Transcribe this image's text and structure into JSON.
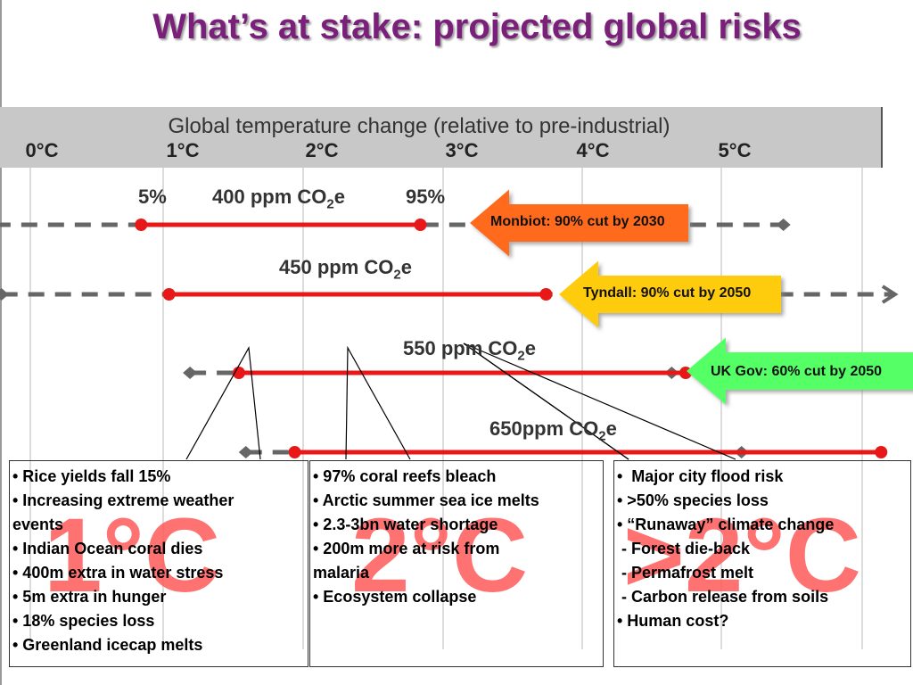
{
  "title": "What’s at stake: projected global risks",
  "axis": {
    "title": "Global temperature change (relative to pre-industrial)",
    "ticks": [
      "0°C",
      "1°C",
      "2°C",
      "3°C",
      "4°C",
      "5°C"
    ]
  },
  "lines": [
    {
      "label": "400 ppm CO",
      "sub": "2",
      "suffix": "e",
      "low_pct": "5%",
      "high_pct": "95%",
      "range": [
        -0.25,
        5.4
      ],
      "likely": [
        0.8,
        2.8
      ]
    },
    {
      "label": "450 ppm CO",
      "sub": "2",
      "suffix": "e",
      "range": [
        -0.2,
        6.2
      ],
      "likely": [
        1.0,
        3.7
      ]
    },
    {
      "label": "550 ppm CO",
      "sub": "2",
      "suffix": "e",
      "range": [
        1.15,
        4.6
      ],
      "likely": [
        1.5,
        4.7
      ]
    },
    {
      "label": "650ppm CO",
      "sub": "2",
      "suffix": "e",
      "range": [
        1.55,
        5.1
      ],
      "likely": [
        1.9,
        6.1
      ]
    }
  ],
  "policy_arrows": [
    {
      "label": "Monbiot: 90% cut by 2030",
      "color": "#ff6a1a"
    },
    {
      "label": "Tyndall: 90% cut by 2050",
      "color": "#ffcc11"
    },
    {
      "label": "UK Gov: 60% cut by 2050",
      "color": "#55ff66"
    }
  ],
  "boxes": [
    {
      "big": "1°C",
      "items": [
        "• Rice yields fall 15%",
        "• Increasing extreme weather",
        "events",
        "• Indian Ocean coral dies",
        "• 400m extra in water stress",
        "• 5m extra in hunger",
        "• 18% species loss",
        "• Greenland icecap melts"
      ]
    },
    {
      "big": "2°C",
      "items": [
        "• 97% coral reefs bleach",
        "• Arctic summer sea ice melts",
        "• 2.3-3bn water shortage",
        "• 200m more at risk from",
        "malaria",
        "• Ecosystem collapse"
      ]
    },
    {
      "big": ">2°C",
      "items": [
        "•  Major city flood risk",
        "• >50% species loss",
        "• “Runaway” climate change",
        " - Forest die-back",
        " - Permafrost melt",
        " - Carbon release from soils",
        "• Human cost?"
      ]
    }
  ],
  "colors": {
    "title": "#7a1f7a",
    "line": "#e81818",
    "dash": "#666666",
    "big_temp": "#ff5a5a"
  }
}
